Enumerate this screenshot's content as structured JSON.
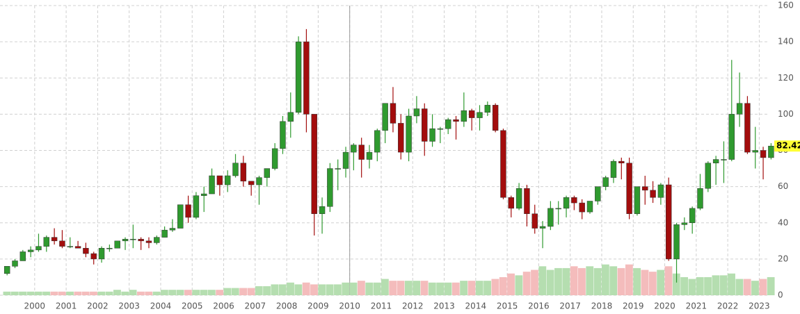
{
  "chart_data": {
    "type": "candlestick",
    "xlim": [
      1998.9,
      2023.3
    ],
    "xticks": [
      2000,
      2001,
      2002,
      2003,
      2004,
      2005,
      2006,
      2007,
      2008,
      2009,
      2010,
      2011,
      2012,
      2013,
      2014,
      2015,
      2016,
      2017,
      2018,
      2019,
      2020,
      2021,
      2022,
      2023
    ],
    "ylim": [
      0,
      160
    ],
    "yticks": [
      0,
      20,
      40,
      60,
      80,
      100,
      120,
      140,
      160
    ],
    "grid": true,
    "crosshair_x": 2010,
    "up_color": "#2f9a2f",
    "down_color": "#a30d0d",
    "volume_up_color": "#b5deb0",
    "volume_down_color": "#f4bcbc",
    "x": [
      1999.125,
      1999.375,
      1999.625,
      1999.875,
      2000.125,
      2000.375,
      2000.625,
      2000.875,
      2001.125,
      2001.375,
      2001.625,
      2001.875,
      2002.125,
      2002.375,
      2002.625,
      2002.875,
      2003.125,
      2003.375,
      2003.625,
      2003.875,
      2004.125,
      2004.375,
      2004.625,
      2004.875,
      2005.125,
      2005.375,
      2005.625,
      2005.875,
      2006.125,
      2006.375,
      2006.625,
      2006.875,
      2007.125,
      2007.375,
      2007.625,
      2007.875,
      2008.125,
      2008.375,
      2008.625,
      2008.875,
      2009.125,
      2009.375,
      2009.625,
      2009.875,
      2010.125,
      2010.375,
      2010.625,
      2010.875,
      2011.125,
      2011.375,
      2011.625,
      2011.875,
      2012.125,
      2012.375,
      2012.625,
      2012.875,
      2013.125,
      2013.375,
      2013.625,
      2013.875,
      2014.125,
      2014.375,
      2014.625,
      2014.875,
      2015.125,
      2015.375,
      2015.625,
      2015.875,
      2016.125,
      2016.375,
      2016.625,
      2016.875,
      2017.125,
      2017.375,
      2017.625,
      2017.875,
      2018.125,
      2018.375,
      2018.625,
      2018.875,
      2019.125,
      2019.375,
      2019.625,
      2019.875,
      2020.125,
      2020.375,
      2020.625,
      2020.875,
      2021.125,
      2021.375,
      2021.625,
      2021.875,
      2022.125,
      2022.375,
      2022.625,
      2022.875,
      2023.125,
      2023.375
    ],
    "open": [
      12,
      16,
      19,
      24,
      25,
      27,
      32,
      30,
      27,
      27,
      26,
      23,
      20,
      26,
      26,
      30,
      31,
      31,
      30,
      29,
      32,
      36,
      37,
      50,
      43,
      55,
      56,
      66,
      61,
      66,
      73,
      63,
      61,
      65,
      70,
      81,
      96,
      101,
      140,
      100,
      45,
      49,
      70,
      70,
      79,
      83,
      75,
      79,
      91,
      106,
      95,
      79,
      99,
      103,
      85,
      92,
      92,
      97,
      96,
      102,
      98,
      101,
      105,
      91,
      54,
      48,
      59,
      45,
      37,
      38,
      48,
      48,
      54,
      51,
      46,
      52,
      60,
      65,
      74,
      73,
      45,
      60,
      58,
      54,
      61,
      20,
      39,
      40,
      48,
      59,
      73,
      75,
      75,
      100,
      106,
      79,
      80,
      76
    ],
    "high": [
      16,
      20,
      25,
      27,
      34,
      33,
      37,
      36,
      32,
      30,
      29,
      24,
      27,
      28,
      30,
      32,
      39,
      32,
      32,
      33,
      38,
      42,
      50,
      55,
      57,
      60,
      70,
      66,
      69,
      78,
      77,
      63,
      66,
      70,
      84,
      99,
      112,
      143,
      147,
      100,
      54,
      73,
      75,
      82,
      84,
      87,
      83,
      92,
      106,
      115,
      100,
      103,
      110,
      106,
      100,
      93,
      98,
      99,
      112,
      103,
      105,
      107,
      106,
      92,
      55,
      62,
      61,
      50,
      41,
      52,
      52,
      55,
      55,
      53,
      52,
      60,
      66,
      75,
      76,
      76,
      60,
      66,
      63,
      62,
      65,
      40,
      43,
      49,
      67,
      74,
      77,
      85,
      130,
      123,
      110,
      93,
      82,
      84
    ],
    "low": [
      11,
      15,
      19,
      21,
      24,
      24,
      28,
      26,
      26,
      26,
      21,
      17,
      18,
      24,
      26,
      25,
      26,
      25,
      26,
      28,
      32,
      35,
      38,
      40,
      42,
      46,
      56,
      55,
      57,
      65,
      60,
      55,
      50,
      60,
      69,
      78,
      87,
      100,
      90,
      33,
      34,
      46,
      58,
      65,
      69,
      65,
      70,
      74,
      84,
      90,
      75,
      74,
      95,
      77,
      82,
      84,
      89,
      86,
      93,
      91,
      91,
      99,
      90,
      53,
      43,
      47,
      38,
      34,
      26,
      36,
      39,
      43,
      47,
      42,
      45,
      50,
      58,
      62,
      64,
      42,
      44,
      50,
      51,
      50,
      19,
      7,
      36,
      34,
      47,
      57,
      61,
      62,
      74,
      93,
      78,
      70,
      64,
      75
    ],
    "close": [
      16,
      19,
      24,
      25,
      27,
      32,
      30,
      27,
      27,
      26,
      23,
      20,
      26,
      26,
      30,
      31,
      31,
      30,
      29,
      32,
      36,
      37,
      50,
      43,
      55,
      56,
      66,
      61,
      66,
      73,
      63,
      61,
      65,
      70,
      81,
      96,
      101,
      140,
      100,
      45,
      49,
      70,
      70,
      79,
      83,
      75,
      79,
      91,
      106,
      95,
      79,
      99,
      103,
      85,
      92,
      92,
      97,
      96,
      102,
      98,
      101,
      105,
      91,
      54,
      48,
      59,
      45,
      37,
      38,
      48,
      48,
      54,
      51,
      46,
      52,
      60,
      65,
      74,
      73,
      45,
      60,
      58,
      54,
      61,
      20,
      39,
      40,
      48,
      59,
      73,
      75,
      75,
      100,
      106,
      79,
      80,
      76,
      82.42
    ],
    "volume": [
      2,
      2,
      2,
      2,
      2,
      2,
      2,
      2,
      2,
      2,
      2,
      2,
      2,
      2,
      3,
      2,
      3,
      2,
      2,
      2,
      3,
      3,
      3,
      3,
      3,
      3,
      3,
      3,
      4,
      4,
      4,
      4,
      5,
      5,
      6,
      6,
      7,
      6,
      7,
      6,
      6,
      6,
      6,
      7,
      7,
      8,
      7,
      7,
      9,
      8,
      8,
      8,
      8,
      8,
      7,
      7,
      7,
      7,
      8,
      8,
      8,
      8,
      9,
      10,
      12,
      11,
      13,
      14,
      16,
      14,
      15,
      15,
      16,
      15,
      16,
      15,
      17,
      16,
      15,
      17,
      15,
      14,
      13,
      14,
      16,
      12,
      10,
      9,
      10,
      10,
      11,
      11,
      12,
      9,
      9,
      8,
      9,
      10
    ]
  }
}
